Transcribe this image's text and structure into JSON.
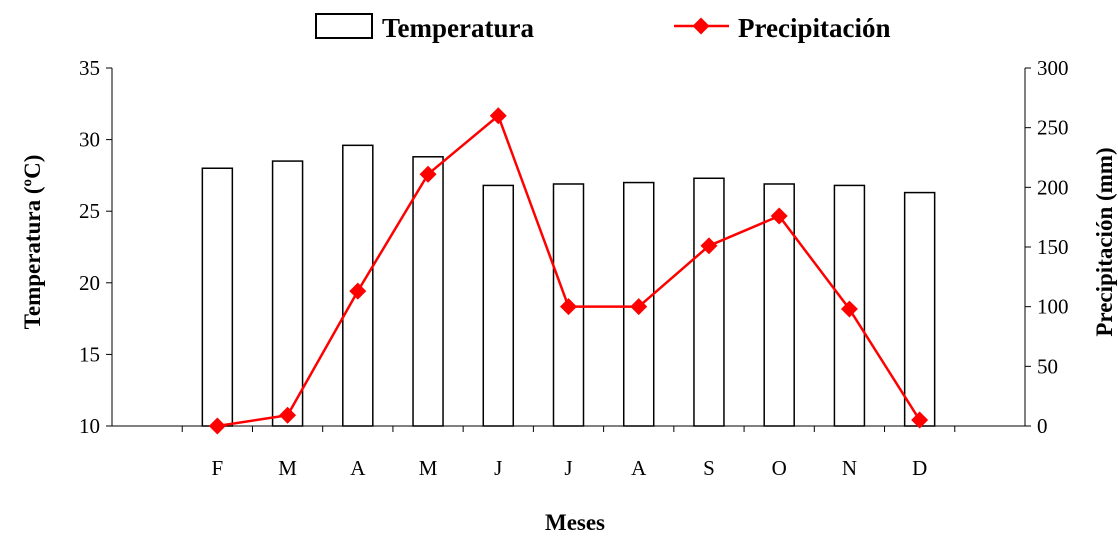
{
  "chart_data": {
    "type": "bar+line",
    "categories": [
      "F",
      "M",
      "A",
      "M",
      "J",
      "J",
      "A",
      "S",
      "O",
      "N",
      "D"
    ],
    "series": [
      {
        "name": "Temperatura",
        "type": "bar",
        "axis": "left",
        "values": [
          28.0,
          28.5,
          29.6,
          28.8,
          26.8,
          26.9,
          27.0,
          27.3,
          26.9,
          26.8,
          26.3
        ]
      },
      {
        "name": "Precipitación",
        "type": "line",
        "axis": "right",
        "color": "#ff0000",
        "values": [
          0,
          9,
          113,
          211,
          260,
          100,
          100,
          151,
          176,
          98,
          5
        ]
      }
    ],
    "xlabel": "Meses",
    "ylabel_left": "Temperatura (ºC)",
    "ylabel_right": "Precipitación (mm)",
    "ylim_left": [
      10,
      35
    ],
    "yticks_left": [
      "10",
      "15",
      "20",
      "25",
      "30",
      "35"
    ],
    "ylim_right": [
      0,
      300
    ],
    "yticks_right": [
      "0",
      "50",
      "100",
      "150",
      "200",
      "250",
      "300"
    ],
    "grid": false,
    "legend_position": "top"
  }
}
